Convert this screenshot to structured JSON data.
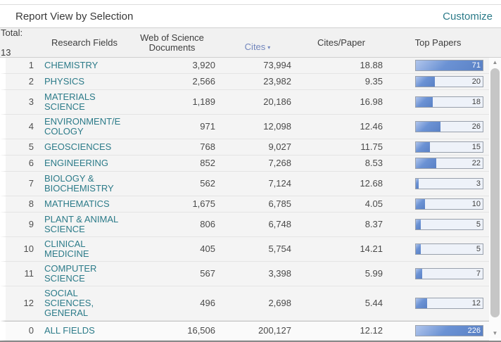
{
  "title_bar": {
    "title": "Report View by Selection",
    "customize_label": "Customize"
  },
  "table": {
    "total_label": "Total:",
    "total_count": "13",
    "columns": {
      "research_fields": "Research Fields",
      "documents": "Web of Science\nDocuments",
      "cites": "Cites",
      "cites_paper": "Cites/Paper",
      "top_papers": "Top Papers"
    },
    "sort": {
      "column": "Cites",
      "direction": "desc"
    },
    "top_papers_bar_max": 71,
    "rows": [
      {
        "rank": "1",
        "field": "CHEMISTRY",
        "documents": "3,920",
        "cites": "73,994",
        "cites_per_paper": "18.88",
        "top_papers": 71
      },
      {
        "rank": "2",
        "field": "PHYSICS",
        "documents": "2,566",
        "cites": "23,982",
        "cites_per_paper": "9.35",
        "top_papers": 20
      },
      {
        "rank": "3",
        "field": "MATERIALS\nSCIENCE",
        "documents": "1,189",
        "cites": "20,186",
        "cites_per_paper": "16.98",
        "top_papers": 18
      },
      {
        "rank": "4",
        "field": "ENVIRONMENT/E\nCOLOGY",
        "documents": "971",
        "cites": "12,098",
        "cites_per_paper": "12.46",
        "top_papers": 26
      },
      {
        "rank": "5",
        "field": "GEOSCIENCES",
        "documents": "768",
        "cites": "9,027",
        "cites_per_paper": "11.75",
        "top_papers": 15
      },
      {
        "rank": "6",
        "field": "ENGINEERING",
        "documents": "852",
        "cites": "7,268",
        "cites_per_paper": "8.53",
        "top_papers": 22
      },
      {
        "rank": "7",
        "field": "BIOLOGY &\nBIOCHEMISTRY",
        "documents": "562",
        "cites": "7,124",
        "cites_per_paper": "12.68",
        "top_papers": 3
      },
      {
        "rank": "8",
        "field": "MATHEMATICS",
        "documents": "1,675",
        "cites": "6,785",
        "cites_per_paper": "4.05",
        "top_papers": 10
      },
      {
        "rank": "9",
        "field": "PLANT & ANIMAL\nSCIENCE",
        "documents": "806",
        "cites": "6,748",
        "cites_per_paper": "8.37",
        "top_papers": 5
      },
      {
        "rank": "10",
        "field": "CLINICAL\nMEDICINE",
        "documents": "405",
        "cites": "5,754",
        "cites_per_paper": "14.21",
        "top_papers": 5
      },
      {
        "rank": "11",
        "field": "COMPUTER\nSCIENCE",
        "documents": "567",
        "cites": "3,398",
        "cites_per_paper": "5.99",
        "top_papers": 7
      },
      {
        "rank": "12",
        "field": "SOCIAL\nSCIENCES,\nGENERAL",
        "documents": "496",
        "cites": "2,698",
        "cites_per_paper": "5.44",
        "top_papers": 12
      },
      {
        "rank": "0",
        "field": "ALL FIELDS",
        "documents": "16,506",
        "cites": "200,127",
        "cites_per_paper": "12.12",
        "top_papers": 226
      }
    ]
  },
  "scrollbar": {
    "up_icon": "▲",
    "down_icon": "▼"
  },
  "icons": {
    "sort_desc": "▾"
  },
  "colors": {
    "link_teal": "#2c7b89",
    "sort_blue": "#7286bd",
    "bar_fill_dark": "#5a81c5",
    "bar_fill_light": "#b0c5ec",
    "bar_background": "#eef2f9",
    "row_background": "#f4f4f4",
    "header_background": "#f1f1f1"
  }
}
